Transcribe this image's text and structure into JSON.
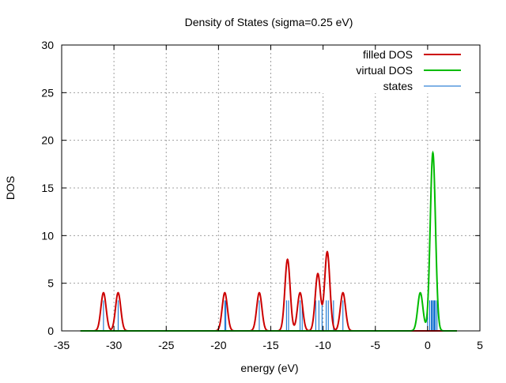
{
  "chart_data": {
    "type": "line",
    "title": "Density of States (sigma=0.25 eV)",
    "xlabel": "energy (eV)",
    "ylabel": "DOS",
    "xlim": [
      -35,
      5
    ],
    "ylim": [
      0,
      30
    ],
    "x_ticks": [
      -35,
      -30,
      -25,
      -20,
      -15,
      -10,
      -5,
      0,
      5
    ],
    "y_ticks": [
      0,
      5,
      10,
      15,
      20,
      25,
      30
    ],
    "grid": true,
    "legend_position": "top-right",
    "sigma": 0.25,
    "curve_range": [
      -33.2,
      2.8
    ],
    "series": [
      {
        "name": "filled DOS",
        "color": "#cc0000",
        "kind": "gaussian-sum",
        "peaks": [
          {
            "center": -31.0,
            "weight": 4.0
          },
          {
            "center": -29.6,
            "weight": 4.0
          },
          {
            "center": -19.4,
            "weight": 4.0
          },
          {
            "center": -16.1,
            "weight": 4.0
          },
          {
            "center": -13.4,
            "weight": 7.5
          },
          {
            "center": -12.2,
            "weight": 4.0
          },
          {
            "center": -10.5,
            "weight": 6.0
          },
          {
            "center": -9.6,
            "weight": 8.3
          },
          {
            "center": -8.1,
            "weight": 4.0
          }
        ]
      },
      {
        "name": "virtual DOS",
        "color": "#00bb00",
        "kind": "gaussian-sum",
        "peaks": [
          {
            "center": -0.7,
            "weight": 4.0
          },
          {
            "center": 0.5,
            "weight": 18.7
          }
        ]
      },
      {
        "name": "states",
        "color": "#0066cc",
        "kind": "impulses",
        "height": 3.2,
        "x": [
          -31.0,
          -29.6,
          -19.4,
          -19.3,
          -16.1,
          -13.5,
          -13.3,
          -12.2,
          -12.0,
          -10.7,
          -10.4,
          -10.1,
          -9.7,
          -9.5,
          -9.0,
          -8.1,
          0.0,
          0.2,
          0.35,
          0.45,
          0.55,
          0.65,
          0.75,
          0.9
        ]
      }
    ]
  }
}
